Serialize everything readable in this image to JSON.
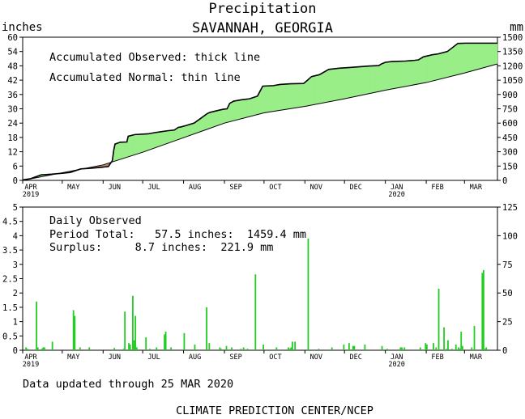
{
  "chart_data": [
    {
      "type": "area",
      "title": "Precipitation",
      "subtitle": "SAVANNAH, GEORGIA",
      "ylabel_left": "inches",
      "ylabel_right": "mm",
      "ylim": [
        0,
        60
      ],
      "y_ticks": [
        "0",
        "6",
        "12",
        "18",
        "24",
        "30",
        "36",
        "42",
        "48",
        "54",
        "60"
      ],
      "y2_ticks": [
        "0",
        "150",
        "300",
        "450",
        "600",
        "750",
        "900",
        "1050",
        "1200",
        "1350",
        "1500"
      ],
      "x_ticks": [
        "APR",
        "MAY",
        "JUN",
        "JUL",
        "AUG",
        "SEP",
        "OCT",
        "NOV",
        "DEC",
        "JAN",
        "FEB",
        "MAR"
      ],
      "x_year_labels": [
        "2019",
        "2020"
      ],
      "annotations": [
        "Accumulated Observed: thick line",
        "Accumulated Normal: thin line"
      ],
      "colors": {
        "surplus": "#99ee88",
        "deficit": "#bb8877",
        "bars": "#22cc22"
      },
      "series": [
        {
          "name": "Accumulated Observed",
          "x": [
            0,
            6,
            14,
            22,
            30,
            36,
            44,
            52,
            60,
            65,
            68,
            69,
            70,
            74,
            79,
            80,
            85,
            95,
            100,
            105,
            110,
            115,
            118,
            120,
            124,
            130,
            135,
            140,
            142,
            148,
            152,
            155,
            157,
            160,
            166,
            172,
            178,
            182,
            190,
            195,
            203,
            213,
            216,
            219,
            225,
            232,
            240,
            248,
            255,
            262,
            270,
            272,
            275,
            280,
            290,
            297,
            300,
            304,
            308,
            310,
            315,
            322,
            330,
            336,
            342,
            352,
            360
          ],
          "y": [
            0.2,
            0.7,
            2.3,
            2.6,
            3.0,
            3.3,
            4.8,
            5.1,
            5.5,
            5.8,
            8.3,
            12.5,
            15.2,
            16.0,
            16.1,
            18.5,
            19.2,
            19.5,
            20.0,
            20.4,
            20.8,
            21.1,
            22.2,
            22.4,
            23.0,
            24.0,
            26.0,
            28.0,
            28.5,
            29.3,
            29.8,
            30.0,
            32.3,
            33.2,
            33.8,
            34.2,
            35.3,
            39.5,
            39.7,
            40.2,
            40.5,
            40.6,
            42.0,
            43.5,
            44.3,
            46.5,
            47.0,
            47.3,
            47.6,
            47.9,
            48.1,
            48.8,
            49.5,
            49.8,
            50.0,
            50.3,
            50.5,
            51.8,
            52.3,
            52.6,
            53.0,
            54.0,
            57.4,
            57.5,
            57.5,
            57.5,
            57.5
          ]
        },
        {
          "name": "Accumulated Normal",
          "x": [
            0,
            30,
            61,
            91,
            122,
            153,
            183,
            214,
            244,
            275,
            306,
            335,
            360
          ],
          "y": [
            0,
            3.2,
            6.5,
            11.8,
            17.9,
            24.0,
            28.3,
            31.0,
            34.2,
            37.8,
            41.0,
            45.0,
            48.8
          ]
        }
      ]
    },
    {
      "type": "bar",
      "title": "",
      "ylim": [
        0,
        5
      ],
      "y_ticks": [
        "0",
        "0.5",
        "1",
        "1.5",
        "2",
        "2.5",
        "3",
        "3.5",
        "4",
        "4.5",
        "5"
      ],
      "y2_ticks": [
        "0",
        "25",
        "50",
        "75",
        "100",
        "125"
      ],
      "x_ticks": [
        "APR",
        "MAY",
        "JUN",
        "JUL",
        "AUG",
        "SEP",
        "OCT",
        "NOV",
        "DEC",
        "JAN",
        "FEB",
        "MAR"
      ],
      "x_year_labels": [
        "2019",
        "2020"
      ],
      "annotations": [
        "Daily Observed",
        "Period Total:   57.5 inches:  1459.4 mm",
        "Surplus:     8.7 inches:  221.9 mm"
      ],
      "days": [
        2,
        3,
        10,
        11,
        14,
        15,
        16,
        22,
        38,
        39,
        43,
        50,
        69,
        76,
        77,
        80,
        81,
        83,
        84,
        85,
        86,
        93,
        96,
        101,
        107,
        108,
        112,
        122,
        130,
        139,
        141,
        149,
        150,
        154,
        158,
        165,
        167,
        170,
        176,
        182,
        192,
        201,
        202,
        203,
        204,
        206,
        216,
        224,
        234,
        243,
        247,
        250,
        251,
        259,
        272,
        276,
        286,
        287,
        289,
        301,
        305,
        306,
        311,
        313,
        315,
        319,
        321,
        322,
        325,
        328,
        330,
        331,
        332,
        333,
        340,
        342,
        348,
        349,
        350,
        351
      ],
      "values": [
        0.1,
        0.05,
        1.7,
        0.1,
        0.05,
        0.1,
        0.1,
        0.3,
        1.4,
        1.2,
        0.1,
        0.1,
        0.08,
        0.05,
        1.35,
        0.25,
        0.2,
        1.9,
        0.35,
        1.2,
        0.1,
        0.45,
        0.05,
        0.1,
        0.55,
        0.65,
        0.1,
        0.6,
        0.2,
        1.5,
        0.25,
        0.1,
        0.05,
        0.15,
        0.1,
        0.05,
        0.1,
        0.05,
        2.65,
        0.2,
        0.1,
        0.1,
        0.05,
        0.1,
        0.3,
        0.3,
        3.9,
        0.05,
        0.1,
        0.2,
        0.25,
        0.15,
        0.15,
        0.2,
        0.15,
        0.05,
        0.1,
        0.1,
        0.1,
        0.1,
        0.25,
        0.2,
        0.25,
        0.1,
        2.15,
        0.8,
        0.05,
        0.35,
        0.05,
        0.2,
        0.1,
        0.05,
        0.65,
        0.15,
        0.1,
        0.85,
        2.7,
        2.8,
        0.05,
        0.1
      ]
    }
  ],
  "footer": {
    "updated": "Data updated through 25 MAR 2020",
    "credit": "CLIMATE PREDICTION CENTER/NCEP"
  }
}
